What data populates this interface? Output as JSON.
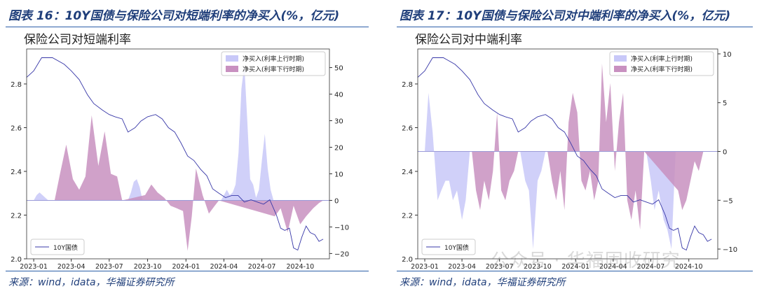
{
  "figures": [
    {
      "caption": "图表 16：10Y国债与保险公司对短端利率的净买入(%，亿元)",
      "source": "来源：wind，idata，华福证券研究所"
    },
    {
      "caption": "图表 17：10Y国债与保险公司对中端利率的净买入(%，亿元)",
      "source": "来源：wind，idata，华福证券研究所"
    }
  ],
  "watermark": "公众号 · 华福固收研究",
  "colors": {
    "buy_up": "#c8c8f8",
    "buy_down": "#c890c0",
    "line": "#3838a8",
    "title_blue": "#1f3e7a",
    "rule_blue": "#2b5ea8"
  },
  "chart_data": [
    {
      "type": "line",
      "title": "保险公司对短端利率",
      "xlabel": "",
      "ylabel": "",
      "x_ticks": [
        "2023-01",
        "2023-04",
        "2023-07",
        "2023-10",
        "2024-01",
        "2024-04",
        "2024-07",
        "2024-10"
      ],
      "y_left_ticks": [
        "2.0",
        "2.2",
        "2.4",
        "2.6",
        "2.8"
      ],
      "y_left_lim": [
        2.0,
        2.96
      ],
      "y_right_ticks": [
        "−20",
        "−10",
        "0",
        "10",
        "20",
        "30",
        "40",
        "50"
      ],
      "y_right_lim": [
        -22,
        57
      ],
      "grid": false,
      "legend_bottom_left": [
        "10Y国债"
      ],
      "legend_top_right": [
        "净买入(利率上行时期)",
        "净买入(利率下行时期)"
      ],
      "series": [
        {
          "name": "10Y国债",
          "axis": "left",
          "x": [
            "2022-12-15",
            "2023-01-01",
            "2023-01-20",
            "2023-02-15",
            "2023-03-15",
            "2023-04-01",
            "2023-04-20",
            "2023-05-10",
            "2023-05-25",
            "2023-06-15",
            "2023-07-01",
            "2023-07-15",
            "2023-08-01",
            "2023-08-15",
            "2023-09-01",
            "2023-09-15",
            "2023-10-01",
            "2023-10-20",
            "2023-11-05",
            "2023-11-20",
            "2023-12-05",
            "2023-12-20",
            "2024-01-05",
            "2024-01-20",
            "2024-02-05",
            "2024-02-20",
            "2024-03-05",
            "2024-03-20",
            "2024-04-05",
            "2024-04-20",
            "2024-05-05",
            "2024-05-20",
            "2024-06-05",
            "2024-06-20",
            "2024-07-05",
            "2024-07-20",
            "2024-08-05",
            "2024-08-15",
            "2024-08-25",
            "2024-09-05",
            "2024-09-15",
            "2024-09-25",
            "2024-10-05",
            "2024-10-15",
            "2024-10-25",
            "2024-11-05",
            "2024-11-15",
            "2024-11-25"
          ],
          "values": [
            2.83,
            2.86,
            2.92,
            2.92,
            2.89,
            2.86,
            2.82,
            2.75,
            2.71,
            2.68,
            2.66,
            2.65,
            2.64,
            2.58,
            2.6,
            2.63,
            2.65,
            2.66,
            2.64,
            2.6,
            2.58,
            2.53,
            2.47,
            2.45,
            2.41,
            2.38,
            2.32,
            2.3,
            2.28,
            2.29,
            2.29,
            2.26,
            2.27,
            2.26,
            2.25,
            2.27,
            2.2,
            2.14,
            2.13,
            2.14,
            2.05,
            2.04,
            2.1,
            2.15,
            2.12,
            2.11,
            2.08,
            2.09
          ]
        },
        {
          "name": "净买入(利率上行时期)",
          "axis": "right",
          "x": [
            "2023-01-01",
            "2023-01-08",
            "2023-01-15",
            "2023-01-22",
            "2023-01-29",
            "2023-02-05",
            "2023-08-15",
            "2023-08-22",
            "2023-08-29",
            "2023-09-05",
            "2023-09-12",
            "2023-09-19",
            "2024-03-25",
            "2024-04-01",
            "2024-04-08",
            "2024-04-15",
            "2024-04-22",
            "2024-04-29",
            "2024-05-06",
            "2024-05-13",
            "2024-05-20",
            "2024-05-27",
            "2024-06-03",
            "2024-06-10",
            "2024-06-17",
            "2024-06-24",
            "2024-07-01",
            "2024-07-08",
            "2024-07-15",
            "2024-07-22",
            "2024-07-29"
          ],
          "values": [
            0,
            2,
            3,
            2,
            1,
            0,
            0,
            3,
            7,
            8,
            5,
            0,
            0,
            2,
            4,
            2,
            3,
            6,
            18,
            42,
            51,
            30,
            8,
            6,
            1,
            4,
            15,
            25,
            12,
            4,
            0
          ]
        },
        {
          "name": "净买入(利率下行时期)",
          "axis": "right",
          "x": [
            "2023-02-20",
            "2023-03-05",
            "2023-03-20",
            "2023-04-05",
            "2023-04-20",
            "2023-05-05",
            "2023-05-20",
            "2023-06-05",
            "2023-06-20",
            "2023-07-05",
            "2023-07-20",
            "2023-08-01",
            "2023-09-25",
            "2023-10-10",
            "2023-10-25",
            "2023-11-10",
            "2023-11-25",
            "2023-12-10",
            "2023-12-25",
            "2024-01-05",
            "2024-01-15",
            "2024-01-25",
            "2024-02-10",
            "2024-02-25",
            "2024-03-10",
            "2024-03-20",
            "2024-08-01",
            "2024-08-15",
            "2024-09-01",
            "2024-09-15",
            "2024-10-01",
            "2024-10-15",
            "2024-11-01",
            "2024-11-15",
            "2024-11-25"
          ],
          "values": [
            0,
            10,
            21,
            8,
            4,
            9,
            32,
            13,
            26,
            10,
            9,
            0,
            2,
            6,
            3,
            1,
            -2,
            -3,
            -4,
            -19,
            -6,
            12,
            2,
            -5,
            -2,
            0,
            -6,
            -3,
            -12,
            -2,
            -9,
            -6,
            -3,
            -1,
            0
          ]
        }
      ]
    },
    {
      "type": "line",
      "title": "保险公司对中端利率",
      "xlabel": "",
      "ylabel": "",
      "x_ticks": [
        "2023-01",
        "2023-04",
        "2023-07",
        "2023-10",
        "2024-01",
        "2024-04",
        "2024-07",
        "2024-10"
      ],
      "y_left_ticks": [
        "2.0",
        "2.2",
        "2.4",
        "2.6",
        "2.8"
      ],
      "y_left_lim": [
        2.0,
        2.96
      ],
      "y_right_ticks": [
        "−10",
        "−5",
        "0",
        "5",
        "10"
      ],
      "y_right_lim": [
        -11,
        10.5
      ],
      "grid": false,
      "legend_bottom_left": [
        "10Y国债"
      ],
      "legend_top_right": [
        "净买入(利率上行时期)",
        "净买入(利率下行时期)"
      ],
      "series": [
        {
          "name": "10Y国债",
          "axis": "left",
          "x": [
            "2022-12-15",
            "2023-01-01",
            "2023-01-20",
            "2023-02-15",
            "2023-03-15",
            "2023-04-01",
            "2023-04-20",
            "2023-05-10",
            "2023-05-25",
            "2023-06-15",
            "2023-07-01",
            "2023-07-15",
            "2023-08-01",
            "2023-08-15",
            "2023-09-01",
            "2023-09-15",
            "2023-10-01",
            "2023-10-20",
            "2023-11-05",
            "2023-11-20",
            "2023-12-05",
            "2023-12-20",
            "2024-01-05",
            "2024-01-20",
            "2024-02-05",
            "2024-02-20",
            "2024-03-05",
            "2024-03-20",
            "2024-04-05",
            "2024-04-20",
            "2024-05-05",
            "2024-05-20",
            "2024-06-05",
            "2024-06-20",
            "2024-07-05",
            "2024-07-20",
            "2024-08-05",
            "2024-08-15",
            "2024-08-25",
            "2024-09-05",
            "2024-09-15",
            "2024-09-25",
            "2024-10-05",
            "2024-10-15",
            "2024-10-25",
            "2024-11-05",
            "2024-11-15",
            "2024-11-25"
          ],
          "values": [
            2.83,
            2.86,
            2.92,
            2.92,
            2.89,
            2.86,
            2.82,
            2.75,
            2.71,
            2.68,
            2.66,
            2.65,
            2.64,
            2.58,
            2.6,
            2.63,
            2.65,
            2.66,
            2.64,
            2.6,
            2.58,
            2.53,
            2.47,
            2.45,
            2.41,
            2.38,
            2.32,
            2.3,
            2.28,
            2.29,
            2.29,
            2.26,
            2.27,
            2.26,
            2.25,
            2.27,
            2.2,
            2.14,
            2.13,
            2.14,
            2.05,
            2.04,
            2.1,
            2.15,
            2.12,
            2.11,
            2.08,
            2.09
          ]
        },
        {
          "name": "净买入(利率上行时期)",
          "axis": "right",
          "x": [
            "2023-01-01",
            "2023-01-10",
            "2023-01-20",
            "2023-02-01",
            "2023-02-10",
            "2023-02-20",
            "2023-03-01",
            "2023-03-10",
            "2023-03-20",
            "2023-04-01",
            "2023-04-10",
            "2023-04-20",
            "2023-08-20",
            "2023-09-01",
            "2023-09-10",
            "2023-09-20",
            "2023-10-01",
            "2023-10-10",
            "2023-10-20",
            "2024-06-20",
            "2024-07-01",
            "2024-07-10",
            "2024-07-20",
            "2024-08-01",
            "2024-08-10",
            "2024-08-20",
            "2024-08-30"
          ],
          "values": [
            0,
            6,
            2,
            -5,
            -4,
            -3,
            -3,
            -5,
            -4,
            -7,
            -5,
            0,
            0,
            -3,
            -4,
            -10,
            -3,
            -2,
            0,
            0,
            -3,
            -6,
            -4,
            -7,
            -8,
            -10,
            0
          ]
        },
        {
          "name": "净买入(利率下行时期)",
          "axis": "right",
          "x": [
            "2023-04-25",
            "2023-05-05",
            "2023-05-15",
            "2023-05-25",
            "2023-06-05",
            "2023-06-15",
            "2023-06-25",
            "2023-07-05",
            "2023-07-15",
            "2023-07-25",
            "2023-08-05",
            "2023-08-15",
            "2023-10-25",
            "2023-11-05",
            "2023-11-15",
            "2023-11-25",
            "2023-12-05",
            "2023-12-15",
            "2023-12-25",
            "2024-01-05",
            "2024-01-15",
            "2024-01-25",
            "2024-02-05",
            "2024-02-15",
            "2024-02-25",
            "2024-03-05",
            "2024-03-15",
            "2024-03-25",
            "2024-04-05",
            "2024-04-15",
            "2024-04-25",
            "2024-05-05",
            "2024-05-15",
            "2024-05-25",
            "2024-06-05",
            "2024-06-15",
            "2024-09-05",
            "2024-09-15",
            "2024-09-25",
            "2024-10-05",
            "2024-10-15",
            "2024-10-25",
            "2024-11-05",
            "2024-11-15",
            "2024-11-25"
          ],
          "values": [
            0,
            -4,
            -6,
            -3,
            -5,
            -2,
            4,
            -4,
            -5,
            -3,
            -2,
            0,
            0,
            -3,
            -5,
            -2,
            -6,
            3,
            6,
            4,
            -3,
            -4,
            -2,
            -5,
            -3,
            9,
            3,
            7,
            -2,
            3,
            6,
            -5,
            -7,
            -4,
            -8,
            0,
            -4,
            -6,
            -5,
            -3,
            -1,
            -2,
            0,
            0,
            0
          ]
        }
      ]
    }
  ]
}
